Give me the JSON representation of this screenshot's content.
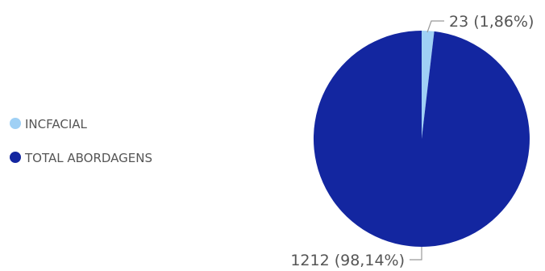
{
  "chart_data": {
    "type": "pie",
    "title": "",
    "legend_position": "left",
    "slices": [
      {
        "name": "INCFACIAL",
        "value": 23,
        "label": "23 (1,86%)",
        "color": "#9fd0f5"
      },
      {
        "name": "TOTAL ABORDAGENS",
        "value": 1212,
        "label": "1212 (98,14%)",
        "color": "#1326a0"
      }
    ]
  }
}
